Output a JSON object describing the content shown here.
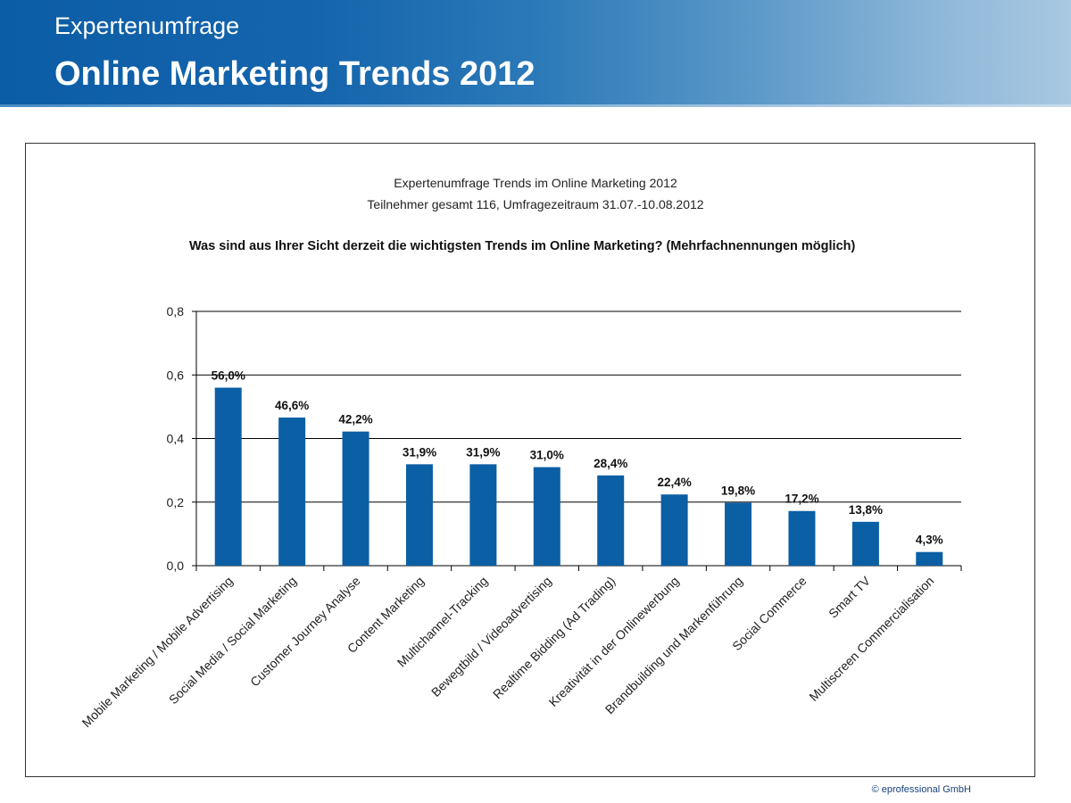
{
  "header": {
    "subtitle": "Expertenumfrage",
    "title": "Online Marketing Trends 2012"
  },
  "footer": {
    "copyright": "© eprofessional GmbH"
  },
  "colors": {
    "bar": "#0b5fa5",
    "header_start": "#0b5da6",
    "header_end": "#a9c8e1"
  },
  "chart_data": {
    "type": "bar",
    "title": "Expertenumfrage  Trends  im Online Marketing 2012",
    "subtitle": "Teilnehmer  gesamt 116,  Umfragezeitraum  31.07.-10.08.2012",
    "question": "Was sind aus Ihrer Sicht derzeit die wichtigsten Trends im Online Marketing? (Mehrfachnennungen möglich)",
    "categories": [
      "Mobile Marketing / Mobile Advertising",
      "Social Media / Social Marketing",
      "Customer Journey Analyse",
      "Content Marketing",
      "Multichannel-Tracking",
      "Bewegtbild / Videoadvertising",
      "Realtime Bidding (Ad Trading)",
      "Kreativität in der Onlinewerbung",
      "Brandbuilding und Markenführung",
      "Social Commerce",
      "Smart TV",
      "Multiscreen Commercialisation"
    ],
    "values": [
      0.56,
      0.466,
      0.422,
      0.319,
      0.319,
      0.31,
      0.284,
      0.224,
      0.198,
      0.172,
      0.138,
      0.043
    ],
    "data_labels": [
      "56,0%",
      "46,6%",
      "42,2%",
      "31,9%",
      "31,9%",
      "31,0%",
      "28,4%",
      "22,4%",
      "19,8%",
      "17,2%",
      "13,8%",
      "4,3%"
    ],
    "yticks": [
      "0,0",
      "0,2",
      "0,4",
      "0,6",
      "0,8"
    ],
    "ylim": [
      0,
      0.8
    ],
    "grid": true,
    "legend": "none"
  }
}
